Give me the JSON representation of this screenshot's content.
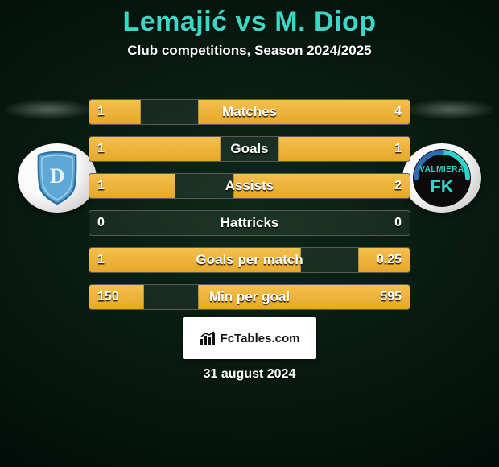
{
  "title": "Lemajić vs M. Diop",
  "subtitle": "Club competitions, Season 2024/2025",
  "date": "31 august 2024",
  "branding": {
    "text": "FcTables.com"
  },
  "accent_color": "#3bd6c6",
  "bar_color": "#e6a728",
  "background": "radial-dark-green",
  "chart": {
    "type": "horizontal-comparison-bars",
    "rows": [
      {
        "label": "Matches",
        "left": "1",
        "right": "4",
        "left_pct": 16,
        "right_pct": 66
      },
      {
        "label": "Goals",
        "left": "1",
        "right": "1",
        "left_pct": 41,
        "right_pct": 41
      },
      {
        "label": "Assists",
        "left": "1",
        "right": "2",
        "left_pct": 27,
        "right_pct": 55
      },
      {
        "label": "Hattricks",
        "left": "0",
        "right": "0",
        "left_pct": 0,
        "right_pct": 0
      },
      {
        "label": "Goals per match",
        "left": "1",
        "right": "0.25",
        "left_pct": 66,
        "right_pct": 16
      },
      {
        "label": "Min per goal",
        "left": "150",
        "right": "595",
        "left_pct": 17,
        "right_pct": 66
      }
    ]
  },
  "crest_left": {
    "name": "daugava",
    "shield_fill": "#5ea8d8",
    "shield_stroke": "#2d6fa3",
    "letter": "D"
  },
  "crest_right": {
    "name": "valmiera-fk",
    "circle_fill": "#0b0b0b",
    "accent": "#2fd3c9",
    "text_top": "VALMIERA",
    "text_bottom": "FK"
  }
}
